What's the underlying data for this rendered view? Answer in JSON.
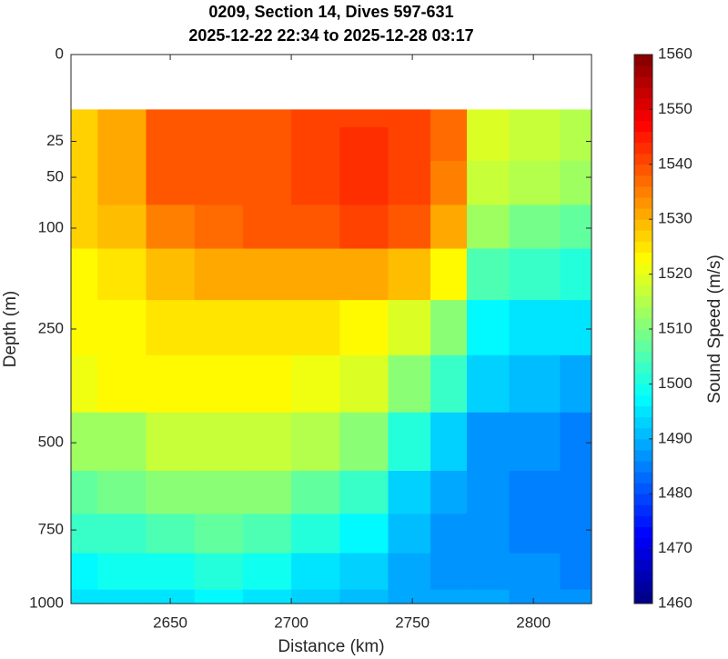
{
  "chart_data": {
    "type": "contourf",
    "title": "0209, Section 14, Dives 597-631",
    "subtitle": "2025-12-22 22:34 to 2025-12-28 03:17",
    "x_label": "Distance (km)",
    "y_label": "Depth (m)",
    "colorbar_label": "Sound Speed (m/s)",
    "x": [
      2610,
      2630,
      2650,
      2670,
      2690,
      2710,
      2730,
      2750,
      2765,
      2780,
      2800,
      2822
    ],
    "y": [
      10,
      25,
      50,
      100,
      150,
      250,
      350,
      500,
      650,
      750,
      900,
      1000
    ],
    "z": [
      [
        1527,
        1530,
        1538,
        1539,
        1539,
        1540,
        1541,
        1540,
        1536,
        1518,
        1516,
        1514
      ],
      [
        1527,
        1530,
        1538,
        1539,
        1539,
        1541,
        1542,
        1541,
        1536,
        1518,
        1516,
        1514
      ],
      [
        1527,
        1530,
        1538,
        1539,
        1539,
        1541,
        1542,
        1541,
        1535,
        1517,
        1514,
        1512
      ],
      [
        1526,
        1528,
        1535,
        1537,
        1538,
        1539,
        1540,
        1538,
        1530,
        1512,
        1508,
        1506
      ],
      [
        1522,
        1524,
        1528,
        1530,
        1530,
        1530,
        1530,
        1528,
        1522,
        1504,
        1502,
        1500
      ],
      [
        1522,
        1523,
        1524,
        1525,
        1525,
        1524,
        1523,
        1518,
        1510,
        1497,
        1495,
        1494
      ],
      [
        1521,
        1522,
        1523,
        1523,
        1522,
        1521,
        1518,
        1510,
        1502,
        1492,
        1490,
        1489
      ],
      [
        1512,
        1513,
        1516,
        1517,
        1516,
        1514,
        1510,
        1500,
        1492,
        1487,
        1486,
        1485
      ],
      [
        1507,
        1508,
        1510,
        1511,
        1510,
        1507,
        1503,
        1493,
        1489,
        1486,
        1485,
        1484
      ],
      [
        1502,
        1503,
        1505,
        1506,
        1504,
        1501,
        1496,
        1490,
        1487,
        1486,
        1485,
        1484
      ],
      [
        1497,
        1498,
        1499,
        1500,
        1498,
        1495,
        1492,
        1489,
        1487,
        1487,
        1486,
        1485
      ],
      [
        1494,
        1495,
        1495,
        1496,
        1495,
        1493,
        1490,
        1489,
        1488,
        1488,
        1487,
        1486
      ]
    ],
    "xlim": [
      2609,
      2824
    ],
    "xticks": [
      2650,
      2700,
      2750,
      2800
    ],
    "ylim": [
      0,
      1000
    ],
    "yticks": [
      0,
      25,
      50,
      100,
      250,
      500,
      750,
      1000
    ],
    "yscale": "sqrt",
    "yreverse": true,
    "colormap": "jet",
    "clim": [
      1460,
      1560
    ],
    "levels": 50,
    "cticks": [
      1460,
      1470,
      1480,
      1490,
      1500,
      1510,
      1520,
      1530,
      1540,
      1550,
      1560
    ]
  }
}
